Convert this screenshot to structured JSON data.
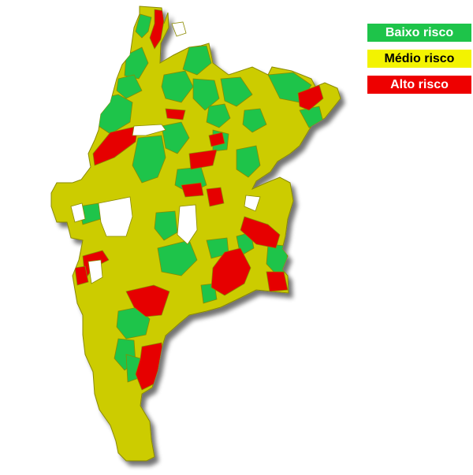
{
  "legend": {
    "low": "Baixo risco",
    "medium": "Médio risco",
    "high": "Alto risco"
  },
  "colors": {
    "low": "#1ec44a",
    "medium": "#cccc00",
    "high": "#e60000",
    "shadow": "#9a9a9a",
    "border": "#8a8a00"
  }
}
